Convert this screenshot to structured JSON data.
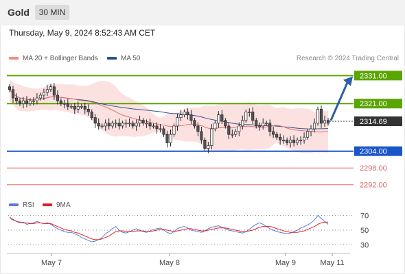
{
  "header": {
    "title": "Gold",
    "timeframe": "30 MIN"
  },
  "timestamp": "Thursday, May 9, 2024 8:52:43 AM CET",
  "legend": {
    "items": [
      "MA 20 + Bollinger Bands",
      "MA 50"
    ]
  },
  "credit": "Research © 2024 Trading Central",
  "rsi_legend": {
    "items": [
      "RSI",
      "9MA"
    ]
  },
  "colors": {
    "resistance": "#5aa500",
    "support": "#1a56c9",
    "target": "#e06464",
    "candle_up": "#ffffff",
    "candle_down": "#555555",
    "ma20": "#e07070",
    "ma50": "#2e4f8a",
    "bands_fill": "#fcdede",
    "rsi": "#5b7ad8",
    "rsi_ma": "#e02020",
    "arrow": "#2a5ea8"
  },
  "chart_data": [
    {
      "type": "candlestick",
      "title": "Gold",
      "timeframe": "30 MIN",
      "x_ticks": [
        "May 7",
        "May 8",
        "May 9",
        "May 11"
      ],
      "y_range": [
        2289,
        2335
      ],
      "price_labels": [
        {
          "value": 2331.0,
          "label": "2331.00",
          "kind": "resistance"
        },
        {
          "value": 2321.0,
          "label": "2321.00",
          "kind": "resistance"
        },
        {
          "value": 2314.69,
          "label": "2314.69",
          "kind": "current"
        },
        {
          "value": 2304.0,
          "label": "2304.00",
          "kind": "support"
        },
        {
          "value": 2298.0,
          "label": "2298.00",
          "kind": "target"
        },
        {
          "value": 2292.0,
          "label": "2292.00",
          "kind": "target"
        }
      ],
      "close": [
        2326,
        2323,
        2322,
        2321,
        2322,
        2321,
        2322,
        2322,
        2323,
        2324,
        2325,
        2326,
        2327,
        2324,
        2322,
        2321,
        2321,
        2320,
        2320,
        2319,
        2320,
        2320,
        2319,
        2318,
        2316,
        2314,
        2313,
        2313,
        2314,
        2313,
        2314,
        2314,
        2313,
        2314,
        2314,
        2314,
        2313,
        2314,
        2315,
        2314,
        2314,
        2313,
        2313,
        2312,
        2312,
        2310,
        2307,
        2310,
        2313,
        2316,
        2317,
        2318,
        2317,
        2315,
        2313,
        2311,
        2308,
        2305,
        2306,
        2312,
        2314,
        2317,
        2315,
        2313,
        2310,
        2310,
        2311,
        2313,
        2315,
        2318,
        2318,
        2315,
        2313,
        2313,
        2314,
        2314,
        2311,
        2310,
        2309,
        2308,
        2308,
        2307,
        2308,
        2307,
        2308,
        2308,
        2309,
        2311,
        2312,
        2314,
        2319,
        2314,
        2315,
        2314
      ],
      "legend": [
        "MA 20 + Bollinger Bands",
        "MA 50"
      ]
    },
    {
      "type": "line",
      "title": "RSI",
      "y_ticks": [
        70,
        50,
        30
      ],
      "series": [
        {
          "name": "RSI",
          "values": [
            68,
            65,
            62,
            60,
            61,
            58,
            59,
            60,
            62,
            60,
            59,
            60,
            58,
            55,
            52,
            50,
            48,
            47,
            47,
            45,
            43,
            40,
            38,
            36,
            34,
            35,
            37,
            40,
            45,
            48,
            52,
            55,
            50,
            47,
            46,
            48,
            50,
            52,
            50,
            48,
            47,
            49,
            51,
            52,
            53,
            50,
            47,
            45,
            48,
            52,
            54,
            55,
            53,
            50,
            49,
            48,
            47,
            49,
            52,
            54,
            55,
            56,
            54,
            52,
            50,
            49,
            48,
            47,
            46,
            48,
            51,
            55,
            58,
            60,
            58,
            55,
            52,
            50,
            48,
            47,
            46,
            45,
            46,
            48,
            50,
            53,
            55,
            57,
            60,
            64,
            70,
            66,
            62,
            58
          ]
        },
        {
          "name": "9MA",
          "values": [
            66,
            64,
            62,
            61,
            60,
            60,
            59,
            59,
            60,
            60,
            59,
            59,
            59,
            57,
            55,
            53,
            51,
            50,
            49,
            47,
            46,
            44,
            42,
            40,
            38,
            37,
            37,
            38,
            40,
            42,
            45,
            48,
            49,
            49,
            48,
            48,
            48,
            49,
            49,
            49,
            48,
            48,
            49,
            50,
            51,
            51,
            50,
            49,
            48,
            49,
            50,
            51,
            52,
            52,
            51,
            50,
            49,
            49,
            50,
            51,
            52,
            53,
            53,
            53,
            52,
            51,
            50,
            49,
            48,
            48,
            49,
            50,
            52,
            54,
            55,
            55,
            55,
            54,
            52,
            51,
            49,
            48,
            47,
            47,
            47,
            48,
            49,
            51,
            53,
            55,
            58,
            60,
            61,
            61
          ]
        }
      ]
    }
  ]
}
